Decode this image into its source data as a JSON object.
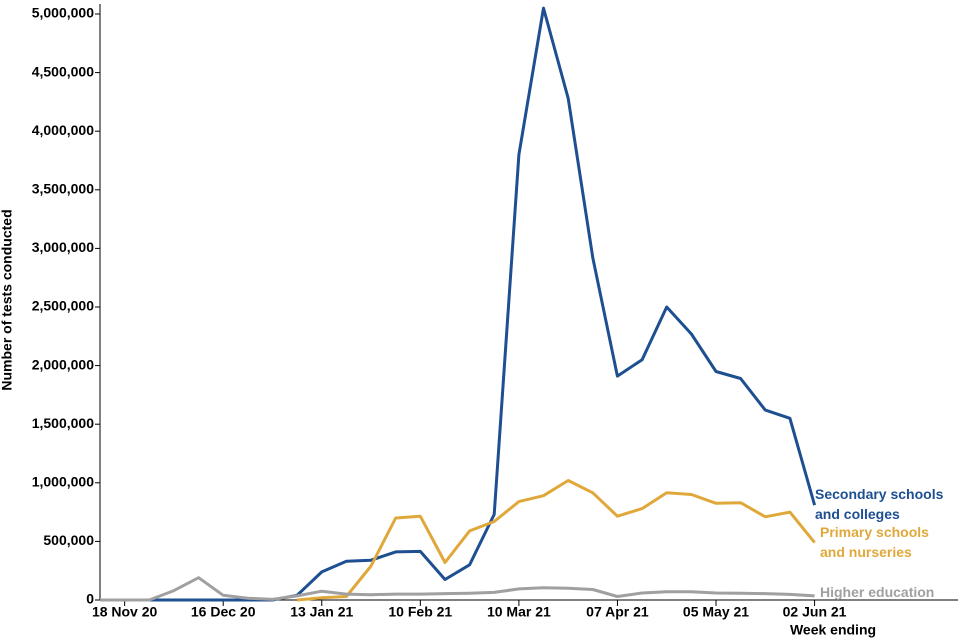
{
  "chart_data": {
    "type": "line",
    "y_label": "Number of tests conducted",
    "x_label": "Week ending",
    "categories": [
      null,
      "18 Nov 20",
      null,
      null,
      null,
      "16 Dec 20",
      null,
      null,
      null,
      "13 Jan 21",
      null,
      null,
      null,
      "10 Feb 21",
      null,
      null,
      null,
      "10 Mar 21",
      null,
      null,
      null,
      "07 Apr 21",
      null,
      null,
      null,
      "05 May 21",
      null,
      null,
      null,
      "02 Jun 21"
    ],
    "series": [
      {
        "name": "Secondary schools and colleges",
        "color": "#1d4f91",
        "values": [
          0,
          0,
          0,
          0,
          0,
          0,
          0,
          0,
          40000,
          240000,
          330000,
          340000,
          410000,
          415000,
          175000,
          300000,
          730000,
          3800000,
          5050000,
          4280000,
          2920000,
          1910000,
          2050000,
          2500000,
          2270000,
          1950000,
          1890000,
          1620000,
          1550000,
          810000
        ]
      },
      {
        "name": "Primary schools and nurseries",
        "color": "#e0a83a",
        "values": [
          null,
          null,
          null,
          null,
          null,
          null,
          null,
          null,
          0,
          20000,
          30000,
          290000,
          700000,
          715000,
          320000,
          590000,
          670000,
          840000,
          890000,
          1020000,
          915000,
          715000,
          780000,
          915000,
          900000,
          825000,
          830000,
          710000,
          750000,
          490000
        ]
      },
      {
        "name": "Higher education",
        "color": "#a0a0a0",
        "values": [
          0,
          0,
          0,
          80000,
          190000,
          40000,
          15000,
          5000,
          35000,
          75000,
          50000,
          45000,
          50000,
          50000,
          55000,
          58000,
          65000,
          95000,
          105000,
          100000,
          90000,
          30000,
          60000,
          70000,
          70000,
          60000,
          58000,
          55000,
          48000,
          35000
        ]
      }
    ],
    "ylim": [
      0,
      5000000
    ],
    "yticks": [
      {
        "value": 0,
        "label": "0"
      },
      {
        "value": 500000,
        "label": "500,000"
      },
      {
        "value": 1000000,
        "label": "1,000,000"
      },
      {
        "value": 1500000,
        "label": "1,500,000"
      },
      {
        "value": 2000000,
        "label": "2,000,000"
      },
      {
        "value": 2500000,
        "label": "2,500,000"
      },
      {
        "value": 3000000,
        "label": "3,000,000"
      },
      {
        "value": 3500000,
        "label": "3,500,000"
      },
      {
        "value": 4000000,
        "label": "4,000,000"
      },
      {
        "value": 4500000,
        "label": "4,500,000"
      },
      {
        "value": 5000000,
        "label": "5,000,000"
      }
    ],
    "grid": false
  }
}
